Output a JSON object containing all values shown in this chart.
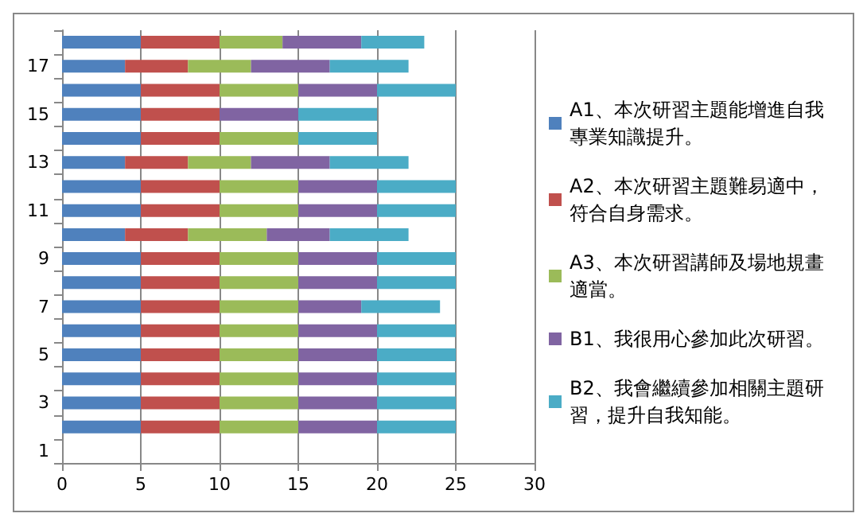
{
  "chart_data": {
    "type": "bar",
    "orientation": "horizontal",
    "stacked": true,
    "categories": [
      null,
      "17",
      null,
      "15",
      null,
      "13",
      null,
      "11",
      null,
      "9",
      null,
      "7",
      null,
      "5",
      null,
      "3",
      null,
      "1"
    ],
    "series": [
      {
        "name": "A1、本次研習主題能增進自我專業知識提升。",
        "color": "#4f81bd",
        "values": [
          5,
          4,
          5,
          5,
          5,
          4,
          5,
          5,
          4,
          5,
          5,
          5,
          5,
          5,
          5,
          5,
          5,
          null
        ]
      },
      {
        "name": "A2、本次研習主題難易適中，符合自身需求。",
        "color": "#c0504d",
        "values": [
          5,
          4,
          5,
          5,
          5,
          4,
          5,
          5,
          4,
          5,
          5,
          5,
          5,
          5,
          5,
          5,
          5,
          null
        ]
      },
      {
        "name": "A3、本次研習講師及場地規畫適當。",
        "color": "#9bbb59",
        "values": [
          4,
          4,
          5,
          0,
          5,
          4,
          5,
          5,
          5,
          5,
          5,
          5,
          5,
          5,
          5,
          5,
          5,
          null
        ]
      },
      {
        "name": "B1、我很用心參加此次研習。",
        "color": "#8064a2",
        "values": [
          5,
          5,
          5,
          5,
          0,
          5,
          5,
          5,
          4,
          5,
          5,
          4,
          5,
          5,
          5,
          5,
          5,
          null
        ]
      },
      {
        "name": "B2、我會繼續參加相關主題研習，提升自我知能。",
        "color": "#4bacc6",
        "values": [
          4,
          5,
          5,
          5,
          5,
          5,
          5,
          5,
          5,
          5,
          5,
          5,
          5,
          5,
          5,
          5,
          5,
          null
        ]
      }
    ],
    "xlim": [
      0,
      30
    ],
    "xticks": [
      0,
      5,
      10,
      15,
      20,
      25,
      30
    ],
    "grid": "x",
    "legend": "right"
  }
}
